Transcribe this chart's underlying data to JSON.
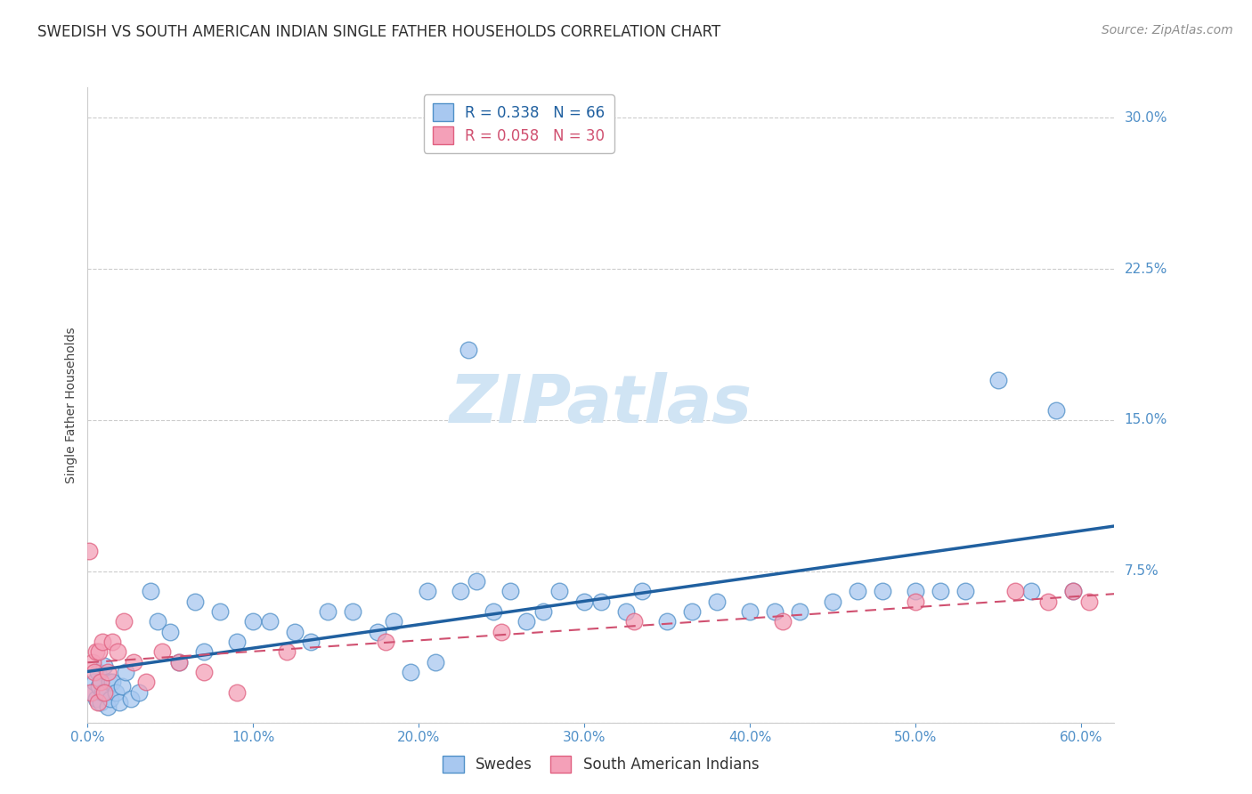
{
  "title": "SWEDISH VS SOUTH AMERICAN INDIAN SINGLE FATHER HOUSEHOLDS CORRELATION CHART",
  "source": "Source: ZipAtlas.com",
  "ylabel": "Single Father Households",
  "xlabel_vals": [
    0.0,
    10.0,
    20.0,
    30.0,
    40.0,
    50.0,
    60.0
  ],
  "ylabel_vals": [
    0.0,
    7.5,
    15.0,
    22.5,
    30.0
  ],
  "xlim": [
    0.0,
    62.0
  ],
  "ylim": [
    0.0,
    31.5
  ],
  "R_swedes": 0.338,
  "N_swedes": 66,
  "R_sai": 0.058,
  "N_sai": 30,
  "legend_label_1": "Swedes",
  "legend_label_2": "South American Indians",
  "color_swedes": "#A8C8F0",
  "color_sai": "#F4A0B8",
  "edge_color_swedes": "#5090C8",
  "edge_color_sai": "#E06080",
  "line_color_swedes": "#2060A0",
  "line_color_sai": "#D05070",
  "tick_color": "#5090C8",
  "watermark_text": "ZIPatlas",
  "watermark_color": "#D0E4F4",
  "title_color": "#303030",
  "source_color": "#909090",
  "swedes_x": [
    0.3,
    0.4,
    0.5,
    0.6,
    0.7,
    0.8,
    0.9,
    1.0,
    1.1,
    1.2,
    1.3,
    1.4,
    1.5,
    1.7,
    1.9,
    2.1,
    2.3,
    2.6,
    3.1,
    3.8,
    4.2,
    5.0,
    5.5,
    6.5,
    7.0,
    8.0,
    9.0,
    10.0,
    11.0,
    12.5,
    13.5,
    14.5,
    16.0,
    17.5,
    18.5,
    19.5,
    20.5,
    21.0,
    22.5,
    23.5,
    24.5,
    25.5,
    26.5,
    27.5,
    28.5,
    30.0,
    31.0,
    32.5,
    33.5,
    35.0,
    36.5,
    38.0,
    40.0,
    41.5,
    43.0,
    45.0,
    46.5,
    48.0,
    50.0,
    51.5,
    53.0,
    55.0,
    57.0,
    58.5,
    59.5,
    23.0
  ],
  "swedes_y": [
    1.5,
    2.0,
    1.2,
    2.5,
    1.8,
    1.0,
    1.5,
    2.8,
    1.5,
    0.8,
    2.0,
    1.2,
    2.0,
    1.5,
    1.0,
    1.8,
    2.5,
    1.2,
    1.5,
    6.5,
    5.0,
    4.5,
    3.0,
    6.0,
    3.5,
    5.5,
    4.0,
    5.0,
    5.0,
    4.5,
    4.0,
    5.5,
    5.5,
    4.5,
    5.0,
    2.5,
    6.5,
    3.0,
    6.5,
    7.0,
    5.5,
    6.5,
    5.0,
    5.5,
    6.5,
    6.0,
    6.0,
    5.5,
    6.5,
    5.0,
    5.5,
    6.0,
    5.5,
    5.5,
    5.5,
    6.0,
    6.5,
    6.5,
    6.5,
    6.5,
    6.5,
    17.0,
    6.5,
    15.5,
    6.5,
    18.5
  ],
  "sai_x": [
    0.1,
    0.2,
    0.3,
    0.4,
    0.5,
    0.6,
    0.7,
    0.8,
    0.9,
    1.0,
    1.2,
    1.5,
    1.8,
    2.2,
    2.8,
    3.5,
    4.5,
    5.5,
    7.0,
    9.0,
    12.0,
    18.0,
    25.0,
    33.0,
    42.0,
    50.0,
    56.0,
    58.0,
    59.5,
    60.5
  ],
  "sai_y": [
    8.5,
    1.5,
    3.0,
    2.5,
    3.5,
    1.0,
    3.5,
    2.0,
    4.0,
    1.5,
    2.5,
    4.0,
    3.5,
    5.0,
    3.0,
    2.0,
    3.5,
    3.0,
    2.5,
    1.5,
    3.5,
    4.0,
    4.5,
    5.0,
    5.0,
    6.0,
    6.5,
    6.0,
    6.5,
    6.0
  ],
  "title_fontsize": 12,
  "source_fontsize": 10,
  "axis_label_fontsize": 10,
  "tick_fontsize": 11,
  "legend_fontsize": 12,
  "background_color": "#FFFFFF",
  "grid_color": "#CCCCCC",
  "spine_color": "#CCCCCC"
}
